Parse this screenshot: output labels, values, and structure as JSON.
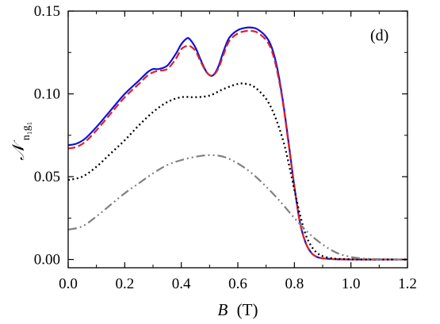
{
  "chart_data": {
    "type": "line",
    "panel_label": "(d)",
    "xlabel": {
      "symbol": "B",
      "unit": "(T)"
    },
    "ylabel": {
      "symbol": "𝒩",
      "subscript": "n₁g₁"
    },
    "xlim": [
      0.0,
      1.2
    ],
    "ylim": [
      -0.005,
      0.15
    ],
    "xticks": [
      0.0,
      0.2,
      0.4,
      0.6,
      0.8,
      1.0,
      1.2
    ],
    "xtick_labels": [
      "0.0",
      "0.2",
      "0.4",
      "0.6",
      "0.8",
      "1.0",
      "1.2"
    ],
    "yticks": [
      0.0,
      0.05,
      0.1,
      0.15
    ],
    "ytick_labels": [
      "0.00",
      "0.05",
      "0.10",
      "0.15"
    ],
    "grid": false,
    "series": [
      {
        "style": "solid",
        "color": "#1010e0",
        "x": [
          0.0,
          0.03,
          0.06,
          0.1,
          0.15,
          0.2,
          0.25,
          0.28,
          0.3,
          0.32,
          0.35,
          0.38,
          0.4,
          0.42,
          0.43,
          0.45,
          0.47,
          0.49,
          0.51,
          0.53,
          0.55,
          0.57,
          0.6,
          0.63,
          0.65,
          0.67,
          0.7,
          0.72,
          0.74,
          0.76,
          0.78,
          0.8,
          0.82,
          0.84,
          0.86,
          0.88,
          0.9,
          0.93,
          0.96,
          1.0,
          1.05,
          1.1,
          1.2
        ],
        "y": [
          0.069,
          0.07,
          0.073,
          0.08,
          0.09,
          0.1,
          0.108,
          0.113,
          0.115,
          0.115,
          0.117,
          0.124,
          0.13,
          0.1335,
          0.133,
          0.128,
          0.12,
          0.113,
          0.111,
          0.116,
          0.126,
          0.134,
          0.1385,
          0.14,
          0.14,
          0.139,
          0.1345,
          0.128,
          0.115,
          0.095,
          0.07,
          0.044,
          0.022,
          0.01,
          0.004,
          0.0015,
          0.0007,
          0.0003,
          0.0001,
          0.0,
          0.0,
          0.0,
          0.0
        ]
      },
      {
        "style": "dashed",
        "color": "#e02020",
        "x": [
          0.0,
          0.03,
          0.06,
          0.1,
          0.15,
          0.2,
          0.25,
          0.28,
          0.3,
          0.32,
          0.35,
          0.38,
          0.4,
          0.42,
          0.43,
          0.45,
          0.47,
          0.49,
          0.51,
          0.53,
          0.55,
          0.57,
          0.6,
          0.63,
          0.65,
          0.67,
          0.7,
          0.72,
          0.74,
          0.76,
          0.78,
          0.8,
          0.82,
          0.84,
          0.86,
          0.88,
          0.9,
          0.93,
          0.96,
          1.0,
          1.05,
          1.1,
          1.2
        ],
        "y": [
          0.067,
          0.068,
          0.071,
          0.078,
          0.088,
          0.098,
          0.106,
          0.111,
          0.113,
          0.114,
          0.115,
          0.121,
          0.127,
          0.129,
          0.129,
          0.126,
          0.119,
          0.113,
          0.111,
          0.115,
          0.124,
          0.132,
          0.1365,
          0.138,
          0.138,
          0.137,
          0.1325,
          0.126,
          0.113,
          0.094,
          0.069,
          0.044,
          0.022,
          0.01,
          0.004,
          0.0015,
          0.0007,
          0.0003,
          0.0001,
          0.0,
          0.0,
          0.0,
          0.0
        ]
      },
      {
        "style": "dotted",
        "color": "#000000",
        "x": [
          0.0,
          0.05,
          0.1,
          0.15,
          0.2,
          0.25,
          0.3,
          0.35,
          0.4,
          0.45,
          0.5,
          0.55,
          0.6,
          0.63,
          0.66,
          0.7,
          0.73,
          0.76,
          0.78,
          0.8,
          0.82,
          0.84,
          0.86,
          0.88,
          0.9,
          0.93,
          0.96,
          1.0,
          1.05,
          1.1,
          1.2
        ],
        "y": [
          0.048,
          0.05,
          0.056,
          0.064,
          0.072,
          0.081,
          0.089,
          0.095,
          0.098,
          0.098,
          0.099,
          0.103,
          0.106,
          0.106,
          0.104,
          0.097,
          0.087,
          0.072,
          0.058,
          0.042,
          0.027,
          0.015,
          0.008,
          0.004,
          0.002,
          0.0008,
          0.0003,
          0.0001,
          0.0,
          0.0,
          0.0
        ]
      },
      {
        "style": "dashdotdot",
        "color": "#808080",
        "x": [
          0.0,
          0.05,
          0.1,
          0.15,
          0.2,
          0.25,
          0.3,
          0.35,
          0.4,
          0.45,
          0.5,
          0.55,
          0.6,
          0.65,
          0.7,
          0.75,
          0.8,
          0.85,
          0.9,
          0.95,
          1.0,
          1.05,
          1.1,
          1.15,
          1.2
        ],
        "y": [
          0.018,
          0.02,
          0.026,
          0.033,
          0.04,
          0.046,
          0.052,
          0.057,
          0.06,
          0.062,
          0.063,
          0.062,
          0.058,
          0.052,
          0.044,
          0.035,
          0.025,
          0.016,
          0.009,
          0.004,
          0.0015,
          0.0005,
          0.0002,
          0.0001,
          0.0
        ]
      }
    ]
  }
}
